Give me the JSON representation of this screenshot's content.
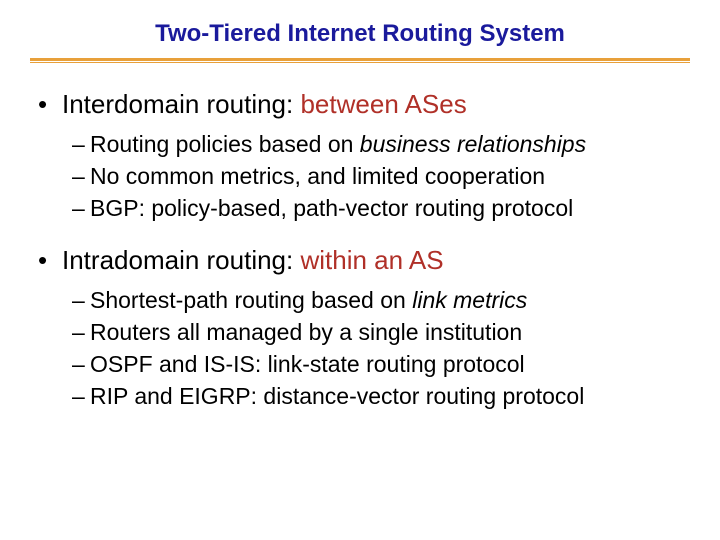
{
  "colors": {
    "title": "#1a1a9c",
    "underline": "#e8a03a",
    "bullet_l1_lead": "#000000",
    "bullet_l1_tail": "#b03028",
    "sub_text": "#000000",
    "background": "#ffffff"
  },
  "typography": {
    "title_fontsize": 24,
    "l1_fontsize": 26,
    "l2_fontsize": 23,
    "font_family": "Verdana"
  },
  "title": "Two-Tiered Internet Routing System",
  "sections": [
    {
      "lead": "Interdomain routing:",
      "tail": " between ASes",
      "subs": [
        {
          "pre": "Routing policies based on ",
          "em": "business relationships",
          "post": ""
        },
        {
          "pre": "No common metrics, and limited cooperation",
          "em": "",
          "post": ""
        },
        {
          "pre": "BGP: policy-based, path-vector routing protocol",
          "em": "",
          "post": ""
        }
      ]
    },
    {
      "lead": "Intradomain routing:",
      "tail": " within an AS",
      "subs": [
        {
          "pre": "Shortest-path routing based on ",
          "em": "link metrics",
          "post": ""
        },
        {
          "pre": "Routers all managed by a single institution",
          "em": "",
          "post": ""
        },
        {
          "pre": "OSPF and IS-IS: link-state routing protocol",
          "em": "",
          "post": ""
        },
        {
          "pre": "RIP and EIGRP: distance-vector routing protocol",
          "em": "",
          "post": ""
        }
      ]
    }
  ]
}
